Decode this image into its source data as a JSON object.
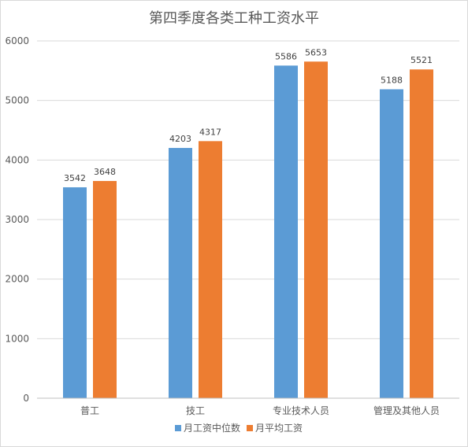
{
  "chart_data": {
    "type": "bar",
    "title": "第四季度各类工种工资水平",
    "categories": [
      "普工",
      "技工",
      "专业技术人员",
      "管理及其他人员"
    ],
    "series": [
      {
        "name": "月工资中位数",
        "color": "#5b9bd5",
        "values": [
          3542,
          4203,
          5586,
          5188
        ]
      },
      {
        "name": "月平均工资",
        "color": "#ed7d31",
        "values": [
          3648,
          4317,
          5653,
          5521
        ]
      }
    ],
    "ylim": [
      0,
      6000
    ],
    "yticks": [
      0,
      1000,
      2000,
      3000,
      4000,
      5000,
      6000
    ],
    "grid": true,
    "legend": "bottom",
    "data_labels": true
  }
}
